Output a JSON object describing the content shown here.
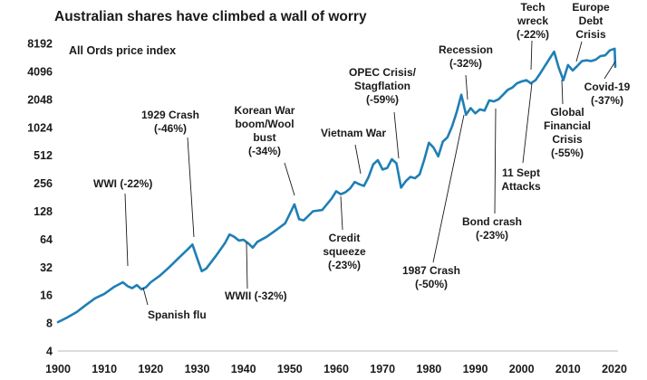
{
  "chart_data": {
    "type": "line",
    "title": "Australian shares have climbed a wall of worry",
    "subtitle": "All Ords price index",
    "xlabel": "",
    "ylabel": "",
    "y_scale": "log2",
    "xlim": [
      1900,
      2020
    ],
    "ylim": [
      4,
      8192
    ],
    "grid": false,
    "x_ticks": [
      "1900",
      "1910",
      "1920",
      "1930",
      "1940",
      "1950",
      "1960",
      "1970",
      "1980",
      "1990",
      "2000",
      "2010",
      "2020"
    ],
    "y_ticks": [
      "8192",
      "4096",
      "2048",
      "1024",
      "512",
      "256",
      "128",
      "64",
      "32",
      "16",
      "8",
      "4"
    ],
    "accent_color": "#1f7fb4",
    "series": [
      {
        "name": "",
        "points": [
          [
            1900,
            8.2
          ],
          [
            1902,
            9.2
          ],
          [
            1904,
            10.5
          ],
          [
            1906,
            12.5
          ],
          [
            1908,
            14.8
          ],
          [
            1910,
            16.5
          ],
          [
            1912,
            19.5
          ],
          [
            1914,
            22
          ],
          [
            1915,
            20
          ],
          [
            1916,
            19
          ],
          [
            1917,
            20.5
          ],
          [
            1918,
            18.5
          ],
          [
            1919,
            19.5
          ],
          [
            1920,
            22
          ],
          [
            1922,
            26
          ],
          [
            1924,
            32
          ],
          [
            1926,
            40
          ],
          [
            1928,
            50
          ],
          [
            1929,
            56
          ],
          [
            1930,
            40
          ],
          [
            1931,
            29
          ],
          [
            1932,
            31
          ],
          [
            1934,
            42
          ],
          [
            1936,
            58
          ],
          [
            1937,
            72
          ],
          [
            1938,
            68
          ],
          [
            1939,
            62
          ],
          [
            1940,
            63
          ],
          [
            1941,
            58
          ],
          [
            1942,
            52
          ],
          [
            1943,
            60
          ],
          [
            1945,
            68
          ],
          [
            1947,
            80
          ],
          [
            1949,
            95
          ],
          [
            1950,
            120
          ],
          [
            1951,
            152
          ],
          [
            1952,
            105
          ],
          [
            1953,
            102
          ],
          [
            1955,
            128
          ],
          [
            1957,
            132
          ],
          [
            1959,
            175
          ],
          [
            1960,
            210
          ],
          [
            1961,
            195
          ],
          [
            1962,
            205
          ],
          [
            1963,
            225
          ],
          [
            1964,
            265
          ],
          [
            1965,
            250
          ],
          [
            1966,
            240
          ],
          [
            1967,
            300
          ],
          [
            1968,
            410
          ],
          [
            1969,
            455
          ],
          [
            1970,
            360
          ],
          [
            1971,
            375
          ],
          [
            1972,
            465
          ],
          [
            1973,
            420
          ],
          [
            1974,
            230
          ],
          [
            1975,
            270
          ],
          [
            1976,
            300
          ],
          [
            1977,
            290
          ],
          [
            1978,
            320
          ],
          [
            1979,
            460
          ],
          [
            1980,
            700
          ],
          [
            1981,
            620
          ],
          [
            1982,
            500
          ],
          [
            1983,
            720
          ],
          [
            1984,
            800
          ],
          [
            1985,
            1050
          ],
          [
            1986,
            1500
          ],
          [
            1987,
            2300
          ],
          [
            1988,
            1400
          ],
          [
            1989,
            1650
          ],
          [
            1990,
            1450
          ],
          [
            1991,
            1600
          ],
          [
            1992,
            1550
          ],
          [
            1993,
            2000
          ],
          [
            1994,
            1950
          ],
          [
            1995,
            2050
          ],
          [
            1996,
            2300
          ],
          [
            1997,
            2600
          ],
          [
            1998,
            2750
          ],
          [
            1999,
            3050
          ],
          [
            2000,
            3200
          ],
          [
            2001,
            3300
          ],
          [
            2002,
            3050
          ],
          [
            2003,
            3300
          ],
          [
            2004,
            3900
          ],
          [
            2005,
            4700
          ],
          [
            2006,
            5600
          ],
          [
            2007,
            6700
          ],
          [
            2008,
            4500
          ],
          [
            2009,
            3300
          ],
          [
            2010,
            4800
          ],
          [
            2011,
            4200
          ],
          [
            2012,
            4700
          ],
          [
            2013,
            5300
          ],
          [
            2014,
            5400
          ],
          [
            2015,
            5300
          ],
          [
            2016,
            5500
          ],
          [
            2017,
            6000
          ],
          [
            2018,
            6100
          ],
          [
            2019,
            6900
          ],
          [
            2020.05,
            7200
          ],
          [
            2020.2,
            4600
          ]
        ]
      }
    ],
    "annotations": [
      {
        "lines": [
          "WWI (-22%)"
        ],
        "year": 1915,
        "value": 22
      },
      {
        "lines": [
          "1929 Crash",
          "(-46%)"
        ],
        "year": 1929.5,
        "value": 56
      },
      {
        "lines": [
          "Spanish flu"
        ],
        "year": 1918.5,
        "value": 18.5
      },
      {
        "lines": [
          "Korean War",
          "boom/Wool",
          "bust",
          "(-34%)"
        ],
        "year": 1951.3,
        "value": 110
      },
      {
        "lines": [
          "WWII (-32%)"
        ],
        "year": 1941.5,
        "value": 58
      },
      {
        "lines": [
          "Vietnam War"
        ],
        "year": 1965.3,
        "value": 250
      },
      {
        "lines": [
          "Credit",
          "squeeze",
          "(-23%)"
        ],
        "year": 1961,
        "value": 195
      },
      {
        "lines": [
          "OPEC Crisis/",
          "Stagflation",
          "(-59%)"
        ],
        "year": 1974.2,
        "value": 330
      },
      {
        "lines": [
          "1987 Crash",
          "(-50%)"
        ],
        "year": 1987.8,
        "value": 1400
      },
      {
        "lines": [
          "Recession",
          "(-32%)"
        ],
        "year": 1990.5,
        "value": 1450
      },
      {
        "lines": [
          "Bond crash",
          "(-23%)"
        ],
        "year": 1994.2,
        "value": 1950
      },
      {
        "lines": [
          "Tech",
          "wreck",
          "(-22%)"
        ],
        "year": 2002,
        "value": 3050
      },
      {
        "lines": [
          "Europe",
          "Debt",
          "Crisis"
        ],
        "year": 2011.2,
        "value": 4200
      },
      {
        "lines": [
          "11 Sept",
          "Attacks"
        ],
        "year": 2001.7,
        "value": 3100
      },
      {
        "lines": [
          "Global",
          "Financial",
          "Crisis",
          "(-55%)"
        ],
        "year": 2008.9,
        "value": 3400
      },
      {
        "lines": [
          "Covid-19",
          "(-37%)"
        ],
        "year": 2020.2,
        "value": 4700
      }
    ]
  }
}
